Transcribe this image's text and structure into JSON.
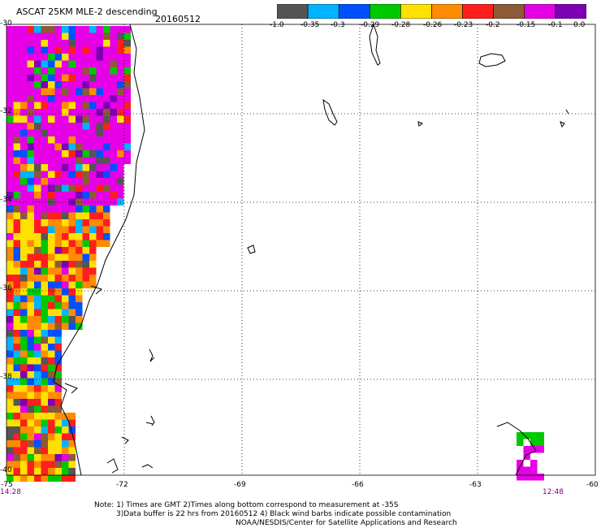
{
  "title": {
    "product": "ASCAT 25KM MLE-2 descending",
    "date": "20160512"
  },
  "colorbar": {
    "colors": [
      "#555555",
      "#00b4ff",
      "#0050ff",
      "#00c800",
      "#ffe100",
      "#ff8c00",
      "#ff1e1e",
      "#8c5a37",
      "#e600e6",
      "#7d00b4"
    ],
    "labels": [
      "-1.0",
      "-0.35",
      "-0.3",
      "-0.29",
      "-0.28",
      "-0.26",
      "-0.23",
      "-0.2",
      "-0.15",
      "-0.1",
      "0.0"
    ]
  },
  "axes": {
    "lat_labels": [
      "-30",
      "-32",
      "-34",
      "-36",
      "-38",
      "-40"
    ],
    "lon_labels": [
      "-75",
      "-72",
      "-69",
      "-66",
      "-63",
      "-60"
    ],
    "start_time": "14:28",
    "end_time": "12:48"
  },
  "notes": {
    "line1": "Note: 1) Times are GMT 2)Times along bottom correspond to measurement at -35S",
    "line2": "3)Data buffer is 22 hrs from 20160512 4) Black wind barbs indicate possible contamination",
    "line3": "NOAA/NESDIS/Center for Satellite Applications and Research"
  }
}
